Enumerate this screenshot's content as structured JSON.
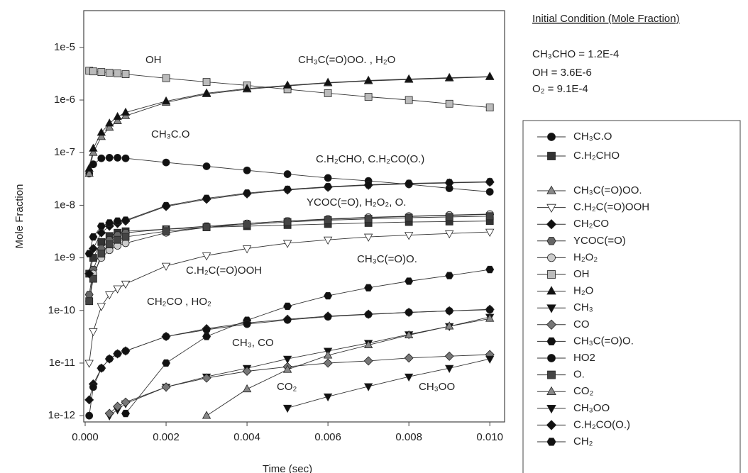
{
  "chart_data": {
    "type": "line",
    "x_label": "Time (sec)",
    "y_label": "Mole Fraction",
    "ylog": true,
    "xlim": [
      0,
      0.0104
    ],
    "ylim": [
      7.6e-13,
      5e-05
    ],
    "xticks": [
      {
        "value": 0,
        "label": "0.000"
      },
      {
        "value": 0.002,
        "label": "0.002"
      },
      {
        "value": 0.004,
        "label": "0.004"
      },
      {
        "value": 0.006,
        "label": "0.006"
      },
      {
        "value": 0.008,
        "label": "0.008"
      },
      {
        "value": 0.01,
        "label": "0.010"
      }
    ],
    "yticks": [
      {
        "value": 1e-05,
        "label": "1e-5"
      },
      {
        "value": 1e-06,
        "label": "1e-6"
      },
      {
        "value": 1e-07,
        "label": "1e-7"
      },
      {
        "value": 1e-08,
        "label": "1e-8"
      },
      {
        "value": 1e-09,
        "label": "1e-9"
      },
      {
        "value": 1e-10,
        "label": "1e-10"
      },
      {
        "value": 1e-11,
        "label": "1e-11"
      },
      {
        "value": 1e-12,
        "label": "1e-12"
      }
    ],
    "x": [
      0.0001,
      0.0002,
      0.0004,
      0.0006,
      0.0008,
      0.001,
      0.002,
      0.003,
      0.004,
      0.005,
      0.006,
      0.007,
      0.008,
      0.009,
      0.01
    ],
    "series": [
      {
        "name": "CH₃C.O",
        "color": "#111111",
        "marker": "circle",
        "values": [
          4e-08,
          6e-08,
          7.8e-08,
          8e-08,
          8e-08,
          7.8e-08,
          6.5e-08,
          5.5e-08,
          4.6e-08,
          3.9e-08,
          3.3e-08,
          2.9e-08,
          2.5e-08,
          2.1e-08,
          1.8e-08
        ]
      },
      {
        "name": "C.H₂CHO",
        "color": "#333333",
        "marker": "square",
        "values": [
          5e-10,
          1e-09,
          2e-09,
          2.6e-09,
          3e-09,
          3.2e-09,
          3.5e-09,
          3.8e-09,
          4e-09,
          4.2e-09,
          4.4e-09,
          4.6e-09,
          4.8e-09,
          4.9e-09,
          5e-09
        ]
      },
      {
        "name": "CH₃C(=O)OO.",
        "color": "#888888",
        "marker": "triangle-up",
        "values": [
          4e-08,
          1e-07,
          2e-07,
          3e-07,
          4e-07,
          5e-07,
          9e-07,
          1.3e-06,
          1.6e-06,
          1.85e-06,
          2.1e-06,
          2.3e-06,
          2.45e-06,
          2.6e-06,
          2.75e-06
        ]
      },
      {
        "name": "C.H₂C(=O)OOH",
        "color": "#ffffff",
        "marker": "triangle-down",
        "values": [
          1e-11,
          4e-11,
          1.2e-10,
          2e-10,
          2.6e-10,
          3.2e-10,
          7e-10,
          1.1e-09,
          1.5e-09,
          1.9e-09,
          2.2e-09,
          2.5e-09,
          2.7e-09,
          2.9e-09,
          3.1e-09
        ]
      },
      {
        "name": "CH₂CO",
        "color": "#111111",
        "marker": "diamond",
        "values": [
          2e-12,
          4e-12,
          8e-12,
          1.2e-11,
          1.5e-11,
          1.7e-11,
          3.2e-11,
          4.5e-11,
          5.8e-11,
          6.8e-11,
          7.8e-11,
          8.5e-11,
          9.2e-11,
          9.8e-11,
          1.05e-10
        ]
      },
      {
        "name": "YCOC(=O)",
        "color": "#666666",
        "marker": "hexagon",
        "values": [
          2e-10,
          6e-10,
          1.5e-09,
          2.2e-09,
          2.7e-09,
          3e-09,
          3.5e-09,
          4e-09,
          4.5e-09,
          5e-09,
          5.4e-09,
          5.8e-09,
          6.1e-09,
          6.4e-09,
          6.7e-09
        ]
      },
      {
        "name": "H₂O₂",
        "color": "#cccccc",
        "marker": "circle",
        "values": [
          1.5e-10,
          5e-10,
          1e-09,
          1.4e-09,
          1.7e-09,
          1.9e-09,
          3e-09,
          3.8e-09,
          4.5e-09,
          5e-09,
          5.5e-09,
          5.9e-09,
          6.2e-09,
          6.5e-09,
          6.8e-09
        ]
      },
      {
        "name": "OH",
        "color": "#bbbbbb",
        "marker": "square",
        "values": [
          3.6e-06,
          3.5e-06,
          3.4e-06,
          3.3e-06,
          3.2e-06,
          3.1e-06,
          2.6e-06,
          2.2e-06,
          1.9e-06,
          1.6e-06,
          1.35e-06,
          1.15e-06,
          1e-06,
          8.5e-07,
          7.2e-07
        ]
      },
      {
        "name": "H₂O",
        "color": "#111111",
        "marker": "triangle-up",
        "values": [
          5e-08,
          1.2e-07,
          2.4e-07,
          3.6e-07,
          4.8e-07,
          5.8e-07,
          9.5e-07,
          1.35e-06,
          1.65e-06,
          1.9e-06,
          2.15e-06,
          2.35e-06,
          2.5e-06,
          2.65e-06,
          2.8e-06
        ]
      },
      {
        "name": "CH₃",
        "color": "#111111",
        "marker": "triangle-down",
        "values": [
          null,
          null,
          null,
          1e-12,
          1.3e-12,
          1.7e-12,
          3.5e-12,
          5.5e-12,
          8e-12,
          1.2e-11,
          1.7e-11,
          2.4e-11,
          3.5e-11,
          5e-11,
          7.5e-11
        ]
      },
      {
        "name": "CO",
        "color": "#777777",
        "marker": "diamond",
        "values": [
          null,
          null,
          null,
          1.1e-12,
          1.5e-12,
          1.8e-12,
          3.5e-12,
          5.2e-12,
          7e-12,
          8.5e-12,
          1e-11,
          1.1e-11,
          1.25e-11,
          1.35e-11,
          1.45e-11
        ]
      },
      {
        "name": "CH₃C(=O)O.",
        "color": "#111111",
        "marker": "hexagon",
        "values": [
          null,
          null,
          null,
          null,
          null,
          1.1e-12,
          1e-11,
          3.2e-11,
          6.5e-11,
          1.2e-10,
          1.9e-10,
          2.7e-10,
          3.6e-10,
          4.6e-10,
          6e-10
        ]
      },
      {
        "name": "HO2",
        "color": "#111111",
        "marker": "circle",
        "values": [
          1e-12,
          3.5e-12,
          8e-12,
          1.2e-11,
          1.5e-11,
          1.7e-11,
          3.2e-11,
          4.3e-11,
          5.5e-11,
          6.6e-11,
          7.6e-11,
          8.4e-11,
          9.2e-11,
          9.8e-11,
          1.03e-10
        ]
      },
      {
        "name": "O.",
        "color": "#444444",
        "marker": "square",
        "values": [
          1.5e-10,
          4e-10,
          1.2e-09,
          1.8e-09,
          2.2e-09,
          2.5e-09,
          3.2e-09,
          3.8e-09,
          4.3e-09,
          4.8e-09,
          5.2e-09,
          5.5e-09,
          5.8e-09,
          6e-09,
          6.2e-09
        ]
      },
      {
        "name": "CO₂",
        "color": "#888888",
        "marker": "triangle-up",
        "values": [
          null,
          null,
          null,
          null,
          null,
          null,
          null,
          1e-12,
          3.2e-12,
          7.5e-12,
          1.4e-11,
          2.2e-11,
          3.4e-11,
          5e-11,
          7e-11
        ]
      },
      {
        "name": "CH₃OO",
        "color": "#111111",
        "marker": "triangle-down",
        "values": [
          null,
          null,
          null,
          null,
          null,
          null,
          null,
          null,
          null,
          1.4e-12,
          2.3e-12,
          3.6e-12,
          5.5e-12,
          8e-12,
          1.2e-11
        ]
      },
      {
        "name": "C.H₂CO(O.)",
        "color": "#111111",
        "marker": "diamond",
        "values": [
          5e-10,
          1.5e-09,
          3e-09,
          4e-09,
          4.5e-09,
          5e-09,
          9.5e-09,
          1.3e-08,
          1.65e-08,
          1.95e-08,
          2.2e-08,
          2.4e-08,
          2.55e-08,
          2.65e-08,
          2.75e-08
        ]
      },
      {
        "name": "CH₂",
        "color": "#111111",
        "marker": "hexagon",
        "values": [
          1.2e-09,
          2.5e-09,
          4e-09,
          4.6e-09,
          5e-09,
          5.2e-09,
          9.8e-09,
          1.35e-08,
          1.7e-08,
          2e-08,
          2.25e-08,
          2.45e-08,
          2.6e-08,
          2.7e-08,
          2.8e-08
        ]
      }
    ],
    "annotations": [
      "OH",
      "CH₃C(=O)OO. , H₂O",
      "CH₃C.O",
      "C.H₂CHO, C.H₂CO(O.)",
      "YCOC(=O), H₂O₂, O.",
      "C.H₂C(=O)OOH",
      "CH₃C(=O)O.",
      "CH₂CO , HO₂",
      "CH₃, CO",
      "CO₂",
      "CH₃OO"
    ],
    "initial_condition": {
      "title": "Initial Condition (Mole Fraction)",
      "lines": [
        "CH₃CHO = 1.2E-4",
        "OH = 3.6E-6",
        "O₂  = 9.1E-4"
      ]
    }
  }
}
